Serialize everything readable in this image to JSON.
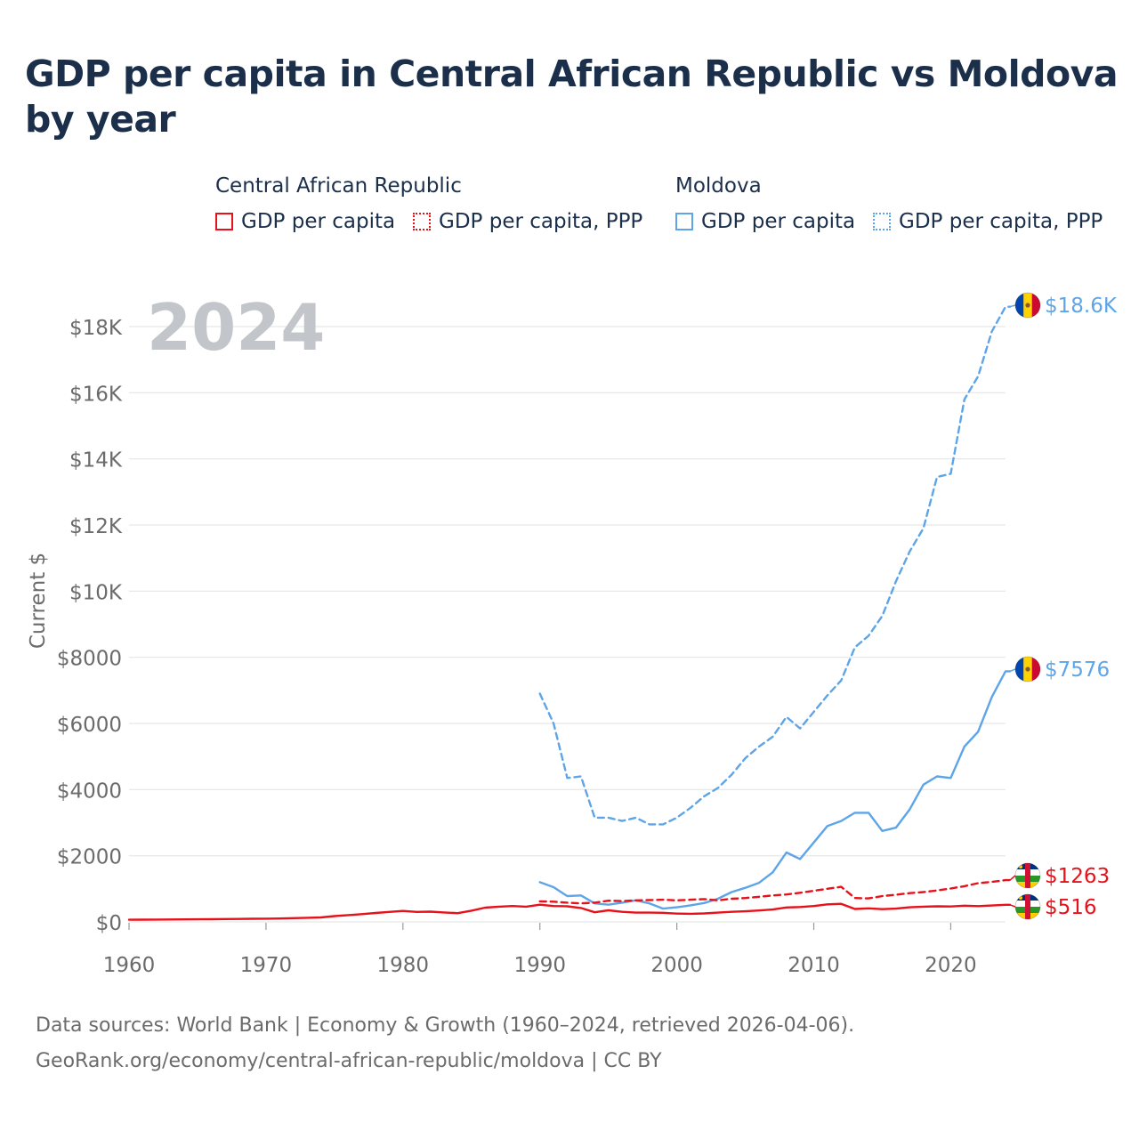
{
  "page": {
    "title": "GDP per capita in Central African Republic vs Moldova by year",
    "footer_line1": "Data sources: World Bank | Economy & Growth (1960–2024, retrieved 2026-04-06).",
    "footer_line2": "GeoRank.org/economy/central-african-republic/moldova | CC BY"
  },
  "legend": {
    "groups": [
      {
        "name": "Central African Republic",
        "items": [
          {
            "label": "GDP per capita",
            "style": "solid",
            "color": "#e8111a"
          },
          {
            "label": "GDP per capita, PPP",
            "style": "dashed",
            "color": "#e8111a"
          }
        ]
      },
      {
        "name": "Moldova",
        "items": [
          {
            "label": "GDP per capita",
            "style": "solid",
            "color": "#5da5e8"
          },
          {
            "label": "GDP per capita, PPP",
            "style": "dashed",
            "color": "#5da5e8"
          }
        ]
      }
    ]
  },
  "chart_data": {
    "type": "line",
    "year_label": "2024",
    "ylabel": "Current $",
    "xlim": [
      1960,
      2024
    ],
    "ylim": [
      0,
      19500
    ],
    "grid": true,
    "x_ticks": [
      1960,
      1970,
      1980,
      1990,
      2000,
      2010,
      2020
    ],
    "y_ticks": [
      {
        "value": 0,
        "label": "$0"
      },
      {
        "value": 2000,
        "label": "$2000"
      },
      {
        "value": 4000,
        "label": "$4000"
      },
      {
        "value": 6000,
        "label": "$6000"
      },
      {
        "value": 8000,
        "label": "$8000"
      },
      {
        "value": 10000,
        "label": "$10K"
      },
      {
        "value": 12000,
        "label": "$12K"
      },
      {
        "value": 14000,
        "label": "$14K"
      },
      {
        "value": 16000,
        "label": "$16K"
      },
      {
        "value": 18000,
        "label": "$18K"
      }
    ],
    "series": [
      {
        "name": "Central African Republic GDP per capita",
        "country": "Central African Republic",
        "metric": "GDP per capita",
        "style": "solid",
        "color": "#e8111a",
        "end_label": "$516",
        "flag": "car",
        "x": [
          1960,
          1961,
          1962,
          1963,
          1964,
          1965,
          1966,
          1967,
          1968,
          1969,
          1970,
          1971,
          1972,
          1973,
          1974,
          1975,
          1976,
          1977,
          1978,
          1979,
          1980,
          1981,
          1982,
          1983,
          1984,
          1985,
          1986,
          1987,
          1988,
          1989,
          1990,
          1991,
          1992,
          1993,
          1994,
          1995,
          1996,
          1997,
          1998,
          1999,
          2000,
          2001,
          2002,
          2003,
          2004,
          2005,
          2006,
          2007,
          2008,
          2009,
          2010,
          2011,
          2012,
          2013,
          2014,
          2015,
          2016,
          2017,
          2018,
          2019,
          2020,
          2021,
          2022,
          2023,
          2024
        ],
        "values": [
          65,
          67,
          69,
          72,
          75,
          78,
          82,
          86,
          90,
          95,
          98,
          102,
          112,
          125,
          135,
          175,
          205,
          235,
          270,
          300,
          330,
          300,
          310,
          285,
          265,
          340,
          430,
          460,
          480,
          460,
          520,
          480,
          470,
          420,
          290,
          350,
          305,
          280,
          280,
          275,
          250,
          245,
          255,
          280,
          305,
          320,
          345,
          375,
          435,
          450,
          480,
          530,
          545,
          390,
          410,
          385,
          400,
          440,
          460,
          470,
          465,
          490,
          475,
          495,
          516
        ]
      },
      {
        "name": "Central African Republic GDP per capita, PPP",
        "country": "Central African Republic",
        "metric": "GDP per capita, PPP",
        "style": "dashed",
        "color": "#e8111a",
        "end_label": "$1263",
        "flag": "car",
        "x": [
          1990,
          1991,
          1992,
          1993,
          1994,
          1995,
          1996,
          1997,
          1998,
          1999,
          2000,
          2001,
          2002,
          2003,
          2004,
          2005,
          2006,
          2007,
          2008,
          2009,
          2010,
          2011,
          2012,
          2013,
          2014,
          2015,
          2016,
          2017,
          2018,
          2019,
          2020,
          2021,
          2022,
          2023,
          2024
        ],
        "values": [
          620,
          610,
          580,
          560,
          580,
          640,
          630,
          650,
          660,
          670,
          650,
          670,
          690,
          650,
          700,
          720,
          760,
          800,
          830,
          880,
          940,
          1000,
          1060,
          720,
          710,
          780,
          820,
          870,
          900,
          950,
          1010,
          1080,
          1170,
          1210,
          1263
        ]
      },
      {
        "name": "Moldova GDP per capita",
        "country": "Moldova",
        "metric": "GDP per capita",
        "style": "solid",
        "color": "#5da5e8",
        "end_label": "$7576",
        "flag": "md",
        "x": [
          1990,
          1991,
          1992,
          1993,
          1994,
          1995,
          1996,
          1997,
          1998,
          1999,
          2000,
          2001,
          2002,
          2003,
          2004,
          2005,
          2006,
          2007,
          2008,
          2009,
          2010,
          2011,
          2012,
          2013,
          2014,
          2015,
          2016,
          2017,
          2018,
          2019,
          2020,
          2021,
          2022,
          2023,
          2024
        ],
        "values": [
          1200,
          1050,
          780,
          800,
          560,
          520,
          580,
          650,
          560,
          400,
          440,
          500,
          570,
          700,
          900,
          1030,
          1180,
          1500,
          2100,
          1900,
          2400,
          2900,
          3050,
          3300,
          3300,
          2750,
          2850,
          3400,
          4150,
          4400,
          4350,
          5300,
          5750,
          6800,
          7576
        ]
      },
      {
        "name": "Moldova GDP per capita, PPP",
        "country": "Moldova",
        "metric": "GDP per capita, PPP",
        "style": "dashed",
        "color": "#5da5e8",
        "end_label": "$18.6K",
        "flag": "md",
        "x": [
          1990,
          1991,
          1992,
          1993,
          1994,
          1995,
          1996,
          1997,
          1998,
          1999,
          2000,
          2001,
          2002,
          2003,
          2004,
          2005,
          2006,
          2007,
          2008,
          2009,
          2010,
          2011,
          2012,
          2013,
          2014,
          2015,
          2016,
          2017,
          2018,
          2019,
          2020,
          2021,
          2022,
          2023,
          2024
        ],
        "values": [
          6900,
          6000,
          4350,
          4400,
          3150,
          3150,
          3050,
          3150,
          2950,
          2950,
          3150,
          3450,
          3800,
          4050,
          4450,
          4950,
          5300,
          5600,
          6200,
          5850,
          6350,
          6850,
          7300,
          8300,
          8650,
          9250,
          10300,
          11200,
          11900,
          13450,
          13550,
          15800,
          16500,
          17850,
          18600
        ]
      }
    ]
  }
}
